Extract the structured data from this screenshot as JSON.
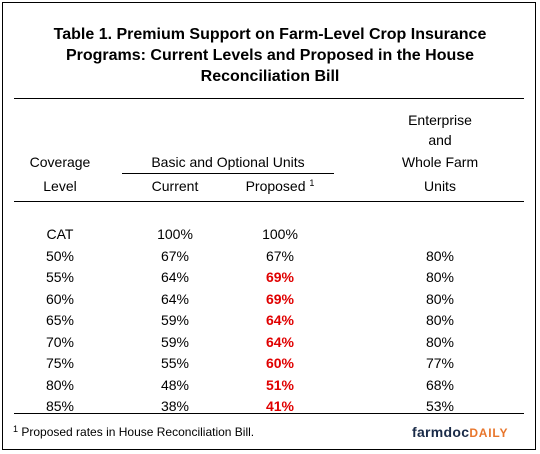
{
  "title": {
    "line1": "Table 1.  Premium Support on Farm-Level Crop Insurance",
    "line2": "Programs:  Current Levels and Proposed in the House",
    "line3": "Reconciliation Bill"
  },
  "headers": {
    "coverage_line1": "Coverage",
    "coverage_line2": "Level",
    "basic_group": "Basic and Optional Units",
    "current": "Current",
    "proposed": "Proposed",
    "proposed_note": "1",
    "enterprise_line1": "Enterprise",
    "enterprise_line2": "and",
    "enterprise_line3": "Whole Farm",
    "enterprise_line4": "Units"
  },
  "rows": [
    {
      "level": "CAT",
      "current": "100%",
      "proposed": "100%",
      "proposed_changed": false,
      "enterprise": ""
    },
    {
      "level": "50%",
      "current": "67%",
      "proposed": "67%",
      "proposed_changed": false,
      "enterprise": "80%"
    },
    {
      "level": "55%",
      "current": "64%",
      "proposed": "69%",
      "proposed_changed": true,
      "enterprise": "80%"
    },
    {
      "level": "60%",
      "current": "64%",
      "proposed": "69%",
      "proposed_changed": true,
      "enterprise": "80%"
    },
    {
      "level": "65%",
      "current": "59%",
      "proposed": "64%",
      "proposed_changed": true,
      "enterprise": "80%"
    },
    {
      "level": "70%",
      "current": "59%",
      "proposed": "64%",
      "proposed_changed": true,
      "enterprise": "80%"
    },
    {
      "level": "75%",
      "current": "55%",
      "proposed": "60%",
      "proposed_changed": true,
      "enterprise": "77%"
    },
    {
      "level": "80%",
      "current": "48%",
      "proposed": "51%",
      "proposed_changed": true,
      "enterprise": "68%"
    },
    {
      "level": "85%",
      "current": "38%",
      "proposed": "41%",
      "proposed_changed": true,
      "enterprise": "53%"
    }
  ],
  "footnote": {
    "marker": "1",
    "text": " Proposed rates in House Reconciliation Bill."
  },
  "brand": {
    "part1": "farmdoc",
    "part2": "DAILY"
  },
  "colors": {
    "changed_value": "#e00000",
    "brand_dark": "#1a2b48",
    "brand_accent": "#e8762c"
  }
}
